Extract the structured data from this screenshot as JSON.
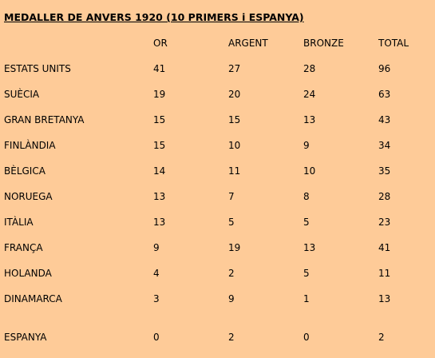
{
  "title": "MEDALLER DE ANVERS 1920 (10 PRIMERS i ESPANYA)",
  "headers": [
    "",
    "OR",
    "ARGENT",
    "BRONZE",
    "TOTAL"
  ],
  "rows": [
    [
      "ESTATS UNITS",
      "41",
      "27",
      "28",
      "96"
    ],
    [
      "SUÈCIA",
      "19",
      "20",
      "24",
      "63"
    ],
    [
      "GRAN BRETANYA",
      "15",
      "15",
      "13",
      "43"
    ],
    [
      "FINLÀNDIA",
      "15",
      "10",
      "9",
      "34"
    ],
    [
      "BÈLGICA",
      "14",
      "11",
      "10",
      "35"
    ],
    [
      "NORUEGA",
      "13",
      "7",
      "8",
      "28"
    ],
    [
      "ITÀLIA",
      "13",
      "5",
      "5",
      "23"
    ],
    [
      "FRANÇA",
      "9",
      "19",
      "13",
      "41"
    ],
    [
      "HOLANDA",
      "4",
      "2",
      "5",
      "11"
    ],
    [
      "DINAMARCA",
      "3",
      "9",
      "1",
      "13"
    ],
    [
      "ESPANYA",
      "0",
      "2",
      "0",
      "2"
    ]
  ],
  "colors": {
    "background": "#fecb98",
    "text": "#000000"
  }
}
